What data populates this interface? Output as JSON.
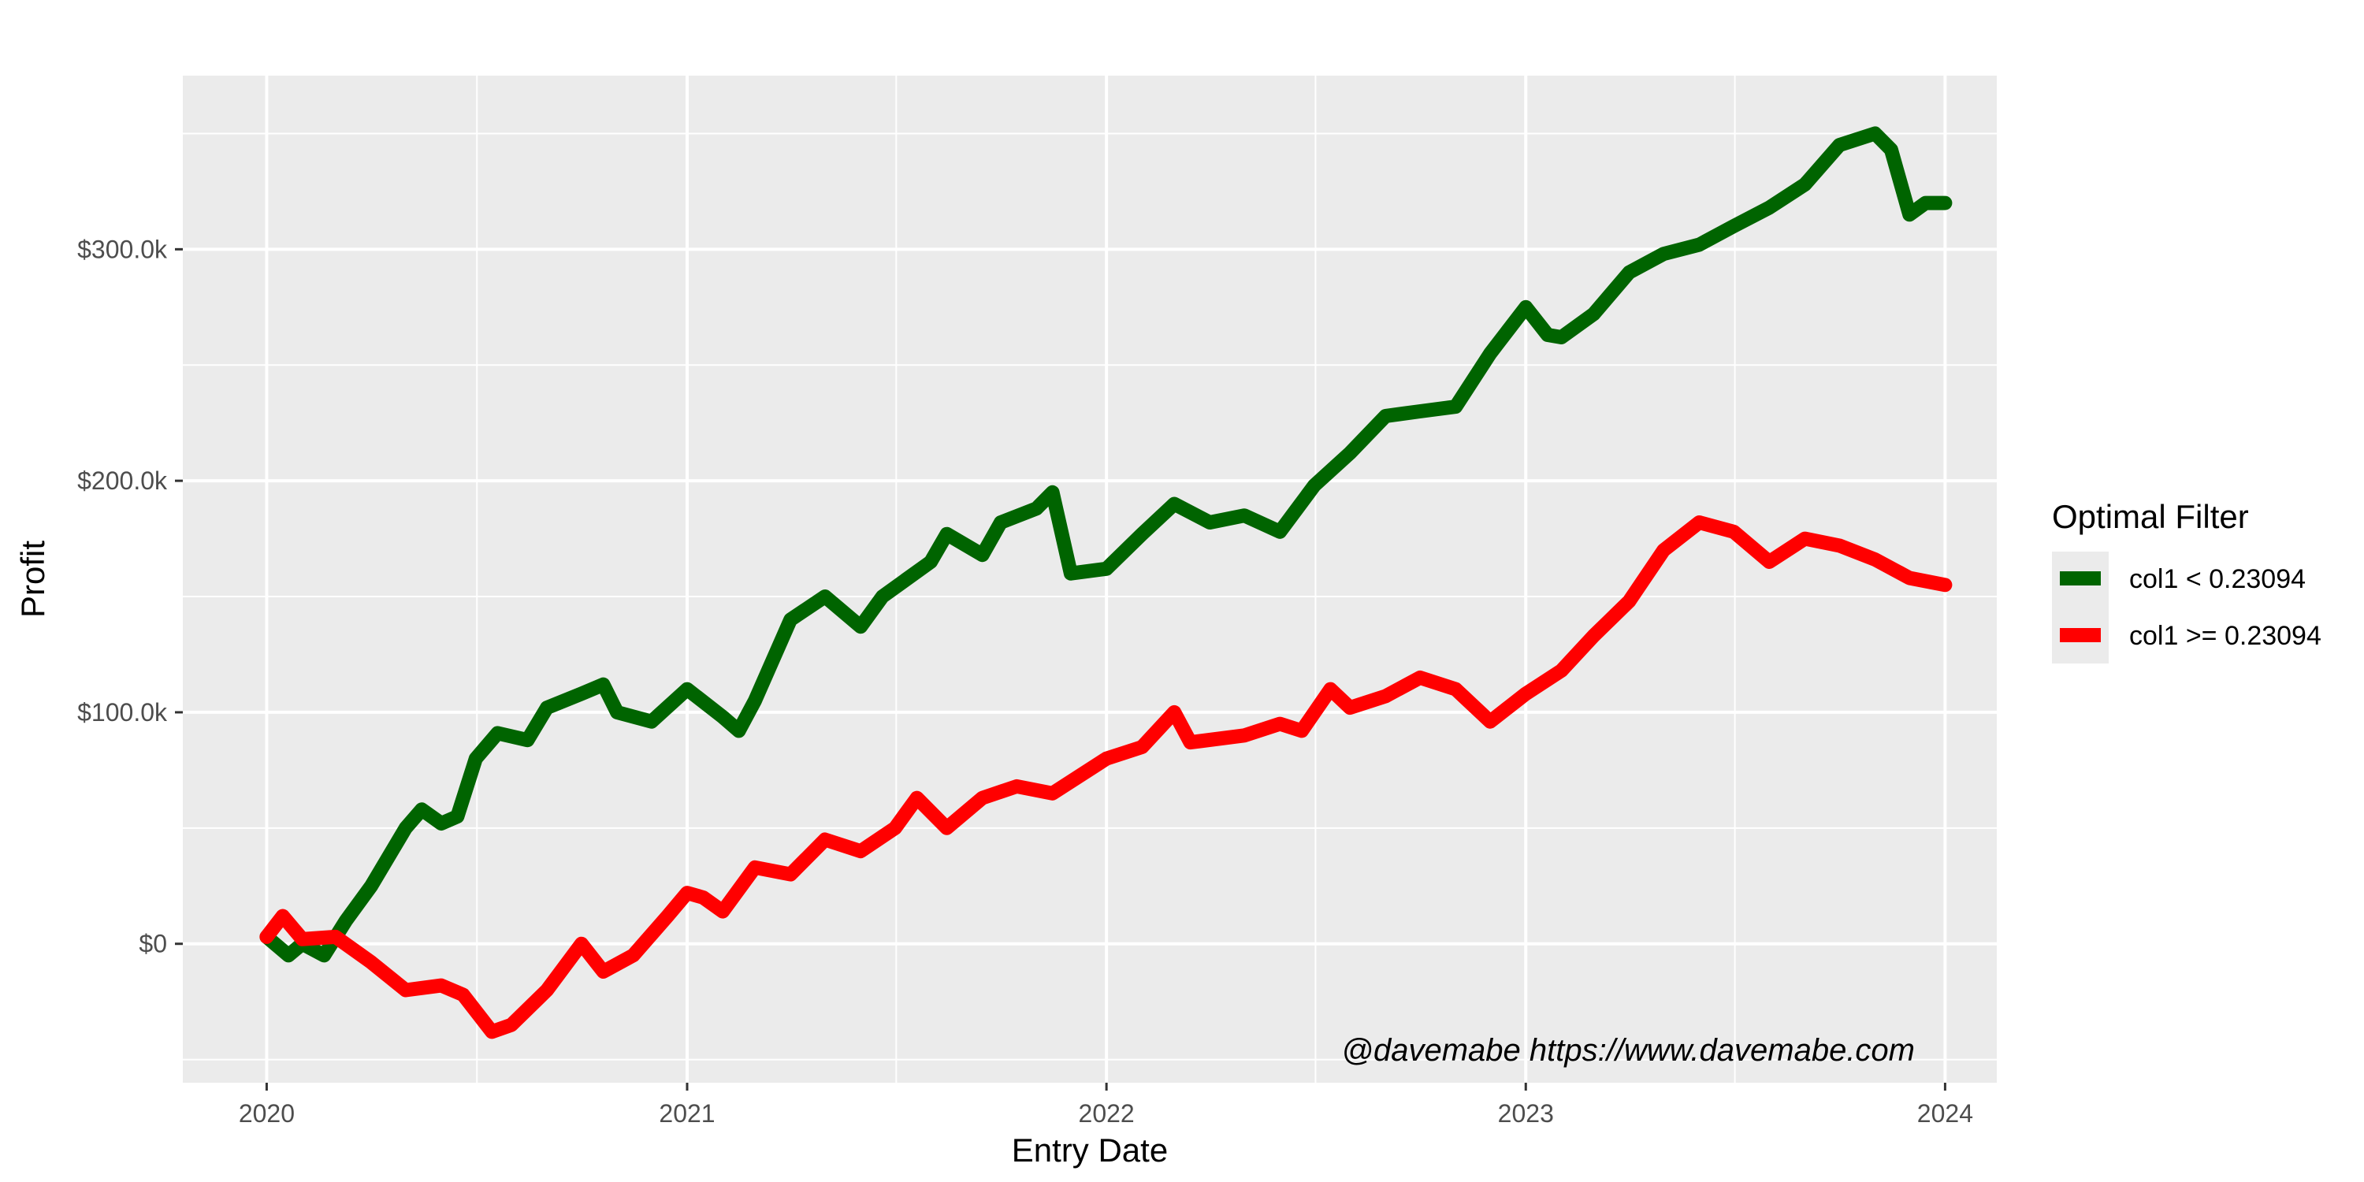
{
  "chart_data": {
    "type": "line",
    "title": "",
    "xlabel": "Entry Date",
    "ylabel": "Profit",
    "x_ticks": [
      "2020",
      "2021",
      "2022",
      "2023",
      "2024"
    ],
    "xlim": [
      "2019-10-20",
      "2024-02-15"
    ],
    "y_ticks": [
      {
        "value": 0,
        "label": "$0"
      },
      {
        "value": 100000,
        "label": "$100.0k"
      },
      {
        "value": 200000,
        "label": "$200.0k"
      },
      {
        "value": 300000,
        "label": "$300.0k"
      }
    ],
    "ylim": [
      -60000,
      375000
    ],
    "grid": true,
    "legend": {
      "title": "Optimal Filter",
      "position": "right"
    },
    "annotation": "@davemabe https://www.davemabe.com",
    "series": [
      {
        "name": "col1 < 0.23094",
        "color": "#006400",
        "points": [
          [
            "2020-01-01",
            3000
          ],
          [
            "2020-01-20",
            -5000
          ],
          [
            "2020-02-01",
            0
          ],
          [
            "2020-02-20",
            -5000
          ],
          [
            "2020-03-10",
            10000
          ],
          [
            "2020-04-01",
            25000
          ],
          [
            "2020-05-01",
            50000
          ],
          [
            "2020-05-15",
            58000
          ],
          [
            "2020-06-01",
            52000
          ],
          [
            "2020-06-15",
            55000
          ],
          [
            "2020-07-01",
            80000
          ],
          [
            "2020-07-20",
            91000
          ],
          [
            "2020-08-15",
            88000
          ],
          [
            "2020-09-01",
            102000
          ],
          [
            "2020-10-01",
            108000
          ],
          [
            "2020-10-20",
            112000
          ],
          [
            "2020-11-01",
            100000
          ],
          [
            "2020-12-01",
            96000
          ],
          [
            "2021-01-01",
            110000
          ],
          [
            "2021-02-01",
            98000
          ],
          [
            "2021-02-15",
            92000
          ],
          [
            "2021-03-01",
            105000
          ],
          [
            "2021-04-01",
            140000
          ],
          [
            "2021-05-01",
            150000
          ],
          [
            "2021-06-01",
            137000
          ],
          [
            "2021-06-20",
            150000
          ],
          [
            "2021-08-01",
            165000
          ],
          [
            "2021-08-15",
            177000
          ],
          [
            "2021-09-15",
            168000
          ],
          [
            "2021-10-01",
            182000
          ],
          [
            "2021-11-01",
            188000
          ],
          [
            "2021-11-15",
            195000
          ],
          [
            "2021-12-01",
            160000
          ],
          [
            "2022-01-01",
            162000
          ],
          [
            "2022-02-01",
            177000
          ],
          [
            "2022-03-01",
            190000
          ],
          [
            "2022-04-01",
            182000
          ],
          [
            "2022-05-01",
            185000
          ],
          [
            "2022-06-01",
            178000
          ],
          [
            "2022-07-01",
            198000
          ],
          [
            "2022-08-01",
            212000
          ],
          [
            "2022-09-01",
            228000
          ],
          [
            "2022-10-01",
            230000
          ],
          [
            "2022-11-01",
            232000
          ],
          [
            "2022-12-01",
            255000
          ],
          [
            "2023-01-01",
            275000
          ],
          [
            "2023-01-20",
            263000
          ],
          [
            "2023-02-01",
            262000
          ],
          [
            "2023-03-01",
            272000
          ],
          [
            "2023-04-01",
            290000
          ],
          [
            "2023-05-01",
            298000
          ],
          [
            "2023-06-01",
            302000
          ],
          [
            "2023-07-01",
            310000
          ],
          [
            "2023-08-01",
            318000
          ],
          [
            "2023-09-01",
            328000
          ],
          [
            "2023-10-01",
            345000
          ],
          [
            "2023-11-01",
            350000
          ],
          [
            "2023-11-15",
            343000
          ],
          [
            "2023-12-01",
            315000
          ],
          [
            "2023-12-15",
            320000
          ],
          [
            "2024-01-01",
            320000
          ]
        ]
      },
      {
        "name": "col1 >= 0.23094",
        "color": "#ff0000",
        "points": [
          [
            "2020-01-01",
            3000
          ],
          [
            "2020-01-15",
            12000
          ],
          [
            "2020-02-01",
            2000
          ],
          [
            "2020-03-01",
            3000
          ],
          [
            "2020-04-01",
            -8000
          ],
          [
            "2020-05-01",
            -20000
          ],
          [
            "2020-06-01",
            -18000
          ],
          [
            "2020-06-20",
            -22000
          ],
          [
            "2020-07-15",
            -38000
          ],
          [
            "2020-08-01",
            -35000
          ],
          [
            "2020-09-01",
            -20000
          ],
          [
            "2020-10-01",
            0
          ],
          [
            "2020-10-20",
            -12000
          ],
          [
            "2020-11-15",
            -5000
          ],
          [
            "2020-12-15",
            12000
          ],
          [
            "2021-01-01",
            22000
          ],
          [
            "2021-01-15",
            20000
          ],
          [
            "2021-02-01",
            14000
          ],
          [
            "2021-03-01",
            33000
          ],
          [
            "2021-04-01",
            30000
          ],
          [
            "2021-05-01",
            45000
          ],
          [
            "2021-06-01",
            40000
          ],
          [
            "2021-07-01",
            50000
          ],
          [
            "2021-07-20",
            63000
          ],
          [
            "2021-08-15",
            50000
          ],
          [
            "2021-09-15",
            63000
          ],
          [
            "2021-10-15",
            68000
          ],
          [
            "2021-11-15",
            65000
          ],
          [
            "2022-01-01",
            80000
          ],
          [
            "2022-02-01",
            85000
          ],
          [
            "2022-03-01",
            100000
          ],
          [
            "2022-03-15",
            87000
          ],
          [
            "2022-05-01",
            90000
          ],
          [
            "2022-06-01",
            95000
          ],
          [
            "2022-06-20",
            92000
          ],
          [
            "2022-07-15",
            110000
          ],
          [
            "2022-08-01",
            102000
          ],
          [
            "2022-09-01",
            107000
          ],
          [
            "2022-10-01",
            115000
          ],
          [
            "2022-11-01",
            110000
          ],
          [
            "2022-12-01",
            96000
          ],
          [
            "2023-01-01",
            108000
          ],
          [
            "2023-02-01",
            118000
          ],
          [
            "2023-03-01",
            133000
          ],
          [
            "2023-04-01",
            148000
          ],
          [
            "2023-05-01",
            170000
          ],
          [
            "2023-06-01",
            182000
          ],
          [
            "2023-07-01",
            178000
          ],
          [
            "2023-08-01",
            165000
          ],
          [
            "2023-09-01",
            175000
          ],
          [
            "2023-10-01",
            172000
          ],
          [
            "2023-11-01",
            166000
          ],
          [
            "2023-12-01",
            158000
          ],
          [
            "2024-01-01",
            155000
          ]
        ]
      }
    ]
  }
}
